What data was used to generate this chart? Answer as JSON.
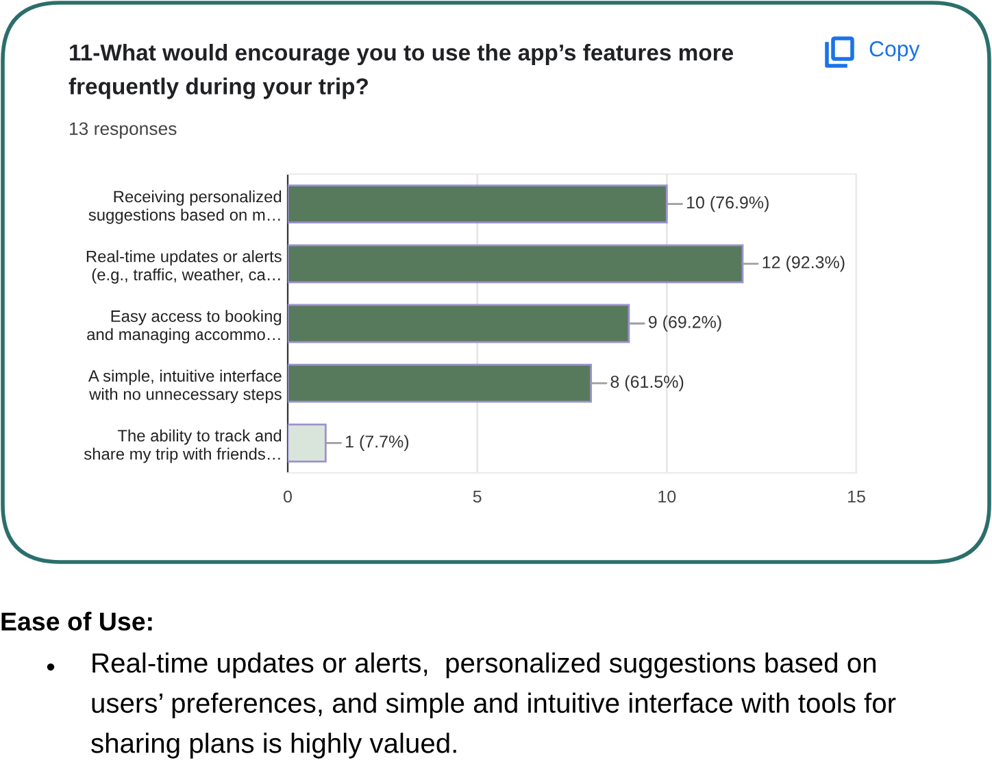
{
  "chart_data": {
    "type": "bar",
    "orientation": "horizontal",
    "title": "11-What would encourage you to use the app’s features more\nfrequently during your trip?",
    "subtitle": "13 responses",
    "categories": [
      "Receiving personalized\nsuggestions based on m…",
      "Real-time updates or alerts\n(e.g., traffic, weather, ca…",
      "Easy access to booking\nand managing accommo…",
      "A simple, intuitive interface\nwith no unnecessary steps",
      "The ability to track and\nshare my trip with friends…"
    ],
    "values": [
      10,
      12,
      9,
      8,
      1
    ],
    "colors": [
      "#577a5c",
      "#577a5c",
      "#577a5c",
      "#577a5c",
      "#d9e5da"
    ],
    "value_labels": [
      "10 (76.9%)",
      "12 (92.3%)",
      "9 (69.2%)",
      "8 (61.5%)",
      "1 (7.7%)"
    ],
    "xlim": [
      0,
      15
    ],
    "xticks": [
      0,
      5,
      10,
      15
    ],
    "grid": "x",
    "annotations": [
      "Copy",
      "Ease of Use:",
      "•",
      "Real-time updates or alerts,  personalized suggestions based on\nusers’ preferences, and simple and intuitive interface with tools for\nsharing plans is highly valued."
    ]
  }
}
